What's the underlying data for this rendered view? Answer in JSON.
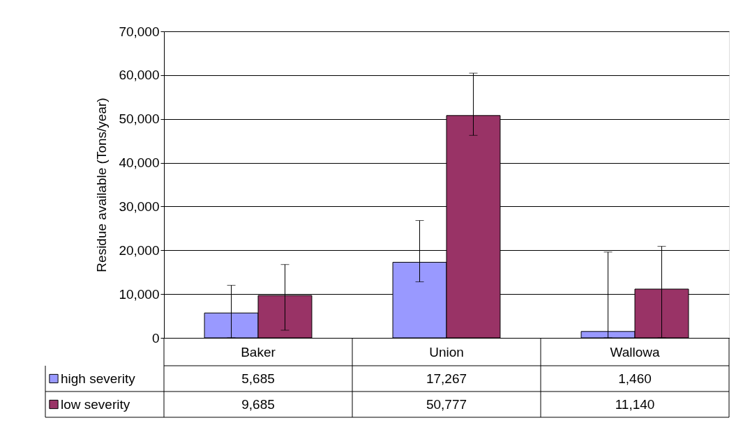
{
  "chart_data": {
    "type": "bar",
    "ylabel": "Residue available (Tons/year)",
    "categories": [
      "Baker",
      "Union",
      "Wallowa"
    ],
    "series": [
      {
        "name": "high severity",
        "color": "#9999ff",
        "values": [
          5685,
          17267,
          1460
        ],
        "value_labels": [
          "5,685",
          "17,267",
          "1,460"
        ],
        "errors": [
          [
            0,
            12000
          ],
          [
            12800,
            26800
          ],
          [
            0,
            19600
          ]
        ]
      },
      {
        "name": "low severity",
        "color": "#993366",
        "values": [
          9685,
          50777,
          11140
        ],
        "value_labels": [
          "9,685",
          "50,777",
          "11,140"
        ],
        "errors": [
          [
            1750,
            16750
          ],
          [
            46250,
            60450
          ],
          [
            0,
            20900
          ]
        ]
      }
    ],
    "ylim": [
      0,
      70000
    ],
    "yticks": [
      0,
      {
        "value": 10000,
        "label": "10,000"
      },
      {
        "value": 20000,
        "label": "20,000"
      },
      {
        "value": 30000,
        "label": "30,000"
      },
      {
        "value": 40000,
        "label": "40,000"
      },
      {
        "value": 50000,
        "label": "50,000"
      },
      {
        "value": 60000,
        "label": "60,000"
      },
      {
        "value": 70000,
        "label": "70,000"
      }
    ],
    "grid": "y",
    "legend": "bottom"
  }
}
